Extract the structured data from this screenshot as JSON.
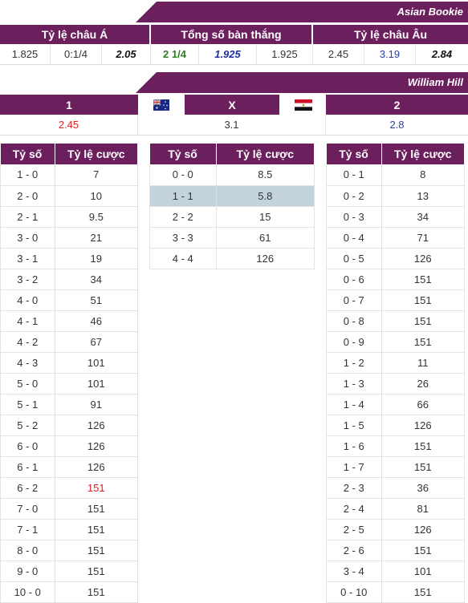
{
  "asian_bookie": {
    "title": "Asian Bookie",
    "headers": [
      "Tỷ lệ châu Á",
      "Tổng số bàn thắng",
      "Tỷ lệ châu Âu"
    ],
    "values": [
      "1.825",
      "0:1/4",
      "2.05",
      "2 1/4",
      "1.925",
      "1.925",
      "2.45",
      "3.19",
      "2.84"
    ]
  },
  "william_hill": {
    "title": "William Hill",
    "home_label": "1",
    "draw_label": "X",
    "away_label": "2",
    "home_odds": "2.45",
    "draw_odds": "3.1",
    "away_odds": "2.8"
  },
  "table_headers": {
    "score": "Tỷ số",
    "odds": "Tỷ lệ cược"
  },
  "home_wins": [
    {
      "score": "1 - 0",
      "odds": "7"
    },
    {
      "score": "2 - 0",
      "odds": "10"
    },
    {
      "score": "2 - 1",
      "odds": "9.5"
    },
    {
      "score": "3 - 0",
      "odds": "21"
    },
    {
      "score": "3 - 1",
      "odds": "19"
    },
    {
      "score": "3 - 2",
      "odds": "34"
    },
    {
      "score": "4 - 0",
      "odds": "51"
    },
    {
      "score": "4 - 1",
      "odds": "46"
    },
    {
      "score": "4 - 2",
      "odds": "67"
    },
    {
      "score": "4 - 3",
      "odds": "101"
    },
    {
      "score": "5 - 0",
      "odds": "101"
    },
    {
      "score": "5 - 1",
      "odds": "91"
    },
    {
      "score": "5 - 2",
      "odds": "126"
    },
    {
      "score": "6 - 0",
      "odds": "126"
    },
    {
      "score": "6 - 1",
      "odds": "126"
    },
    {
      "score": "6 - 2",
      "odds": "151",
      "highlight_red": true
    },
    {
      "score": "7 - 0",
      "odds": "151"
    },
    {
      "score": "7 - 1",
      "odds": "151"
    },
    {
      "score": "8 - 0",
      "odds": "151"
    },
    {
      "score": "9 - 0",
      "odds": "151"
    },
    {
      "score": "10 - 0",
      "odds": "151"
    }
  ],
  "draws": [
    {
      "score": "0 - 0",
      "odds": "8.5"
    },
    {
      "score": "1 - 1",
      "odds": "5.8",
      "highlight_row": true
    },
    {
      "score": "2 - 2",
      "odds": "15"
    },
    {
      "score": "3 - 3",
      "odds": "61"
    },
    {
      "score": "4 - 4",
      "odds": "126"
    }
  ],
  "away_wins": [
    {
      "score": "0 - 1",
      "odds": "8"
    },
    {
      "score": "0 - 2",
      "odds": "13"
    },
    {
      "score": "0 - 3",
      "odds": "34"
    },
    {
      "score": "0 - 4",
      "odds": "71"
    },
    {
      "score": "0 - 5",
      "odds": "126"
    },
    {
      "score": "0 - 6",
      "odds": "151"
    },
    {
      "score": "0 - 7",
      "odds": "151"
    },
    {
      "score": "0 - 8",
      "odds": "151"
    },
    {
      "score": "0 - 9",
      "odds": "151"
    },
    {
      "score": "1 - 2",
      "odds": "11"
    },
    {
      "score": "1 - 3",
      "odds": "26"
    },
    {
      "score": "1 - 4",
      "odds": "66"
    },
    {
      "score": "1 - 5",
      "odds": "126"
    },
    {
      "score": "1 - 6",
      "odds": "151"
    },
    {
      "score": "1 - 7",
      "odds": "151"
    },
    {
      "score": "2 - 3",
      "odds": "36"
    },
    {
      "score": "2 - 4",
      "odds": "81"
    },
    {
      "score": "2 - 5",
      "odds": "126"
    },
    {
      "score": "2 - 6",
      "odds": "151"
    },
    {
      "score": "3 - 4",
      "odds": "101"
    },
    {
      "score": "0 - 10",
      "odds": "151"
    }
  ],
  "colors": {
    "header_bg": "#6b1f5c",
    "highlight_row": "#c3d3de",
    "red": "#e02020",
    "blue": "#2a3fa0",
    "green": "#2e7d1f"
  },
  "icons": {
    "home_flag": "australia-flag-icon",
    "away_flag": "egypt-flag-icon"
  }
}
